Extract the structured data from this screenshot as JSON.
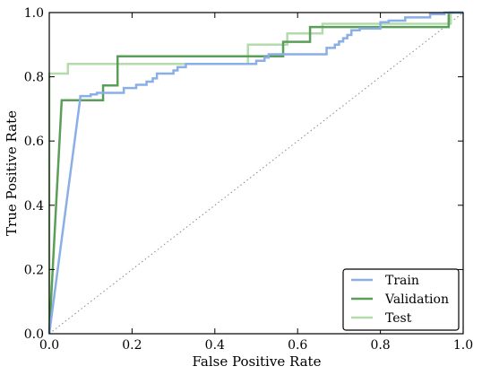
{
  "chart_data": {
    "type": "line",
    "xlabel": "False Positive Rate",
    "ylabel": "True Positive Rate",
    "xlim": [
      0.0,
      1.0
    ],
    "ylim": [
      0.0,
      1.0
    ],
    "xticks": [
      0.0,
      0.2,
      0.4,
      0.6,
      0.8,
      1.0
    ],
    "yticks": [
      0.0,
      0.2,
      0.4,
      0.6,
      0.8,
      1.0
    ],
    "x_tick_labels": [
      "0.0",
      "0.2",
      "0.4",
      "0.6",
      "0.8",
      "1.0"
    ],
    "y_tick_labels": [
      "0.0",
      "0.2",
      "0.4",
      "0.6",
      "0.8",
      "1.0"
    ],
    "grid": false,
    "legend_position": "lower-right",
    "reference_line": {
      "style": "dotted",
      "color": "#888888",
      "x": [
        0,
        1
      ],
      "y": [
        0,
        1
      ]
    },
    "series": [
      {
        "name": "Train",
        "color": "#8aaee6",
        "x": [
          0.0,
          0.075,
          0.075,
          0.1,
          0.1,
          0.115,
          0.115,
          0.18,
          0.18,
          0.21,
          0.21,
          0.235,
          0.235,
          0.25,
          0.25,
          0.26,
          0.26,
          0.3,
          0.3,
          0.31,
          0.31,
          0.33,
          0.33,
          0.5,
          0.5,
          0.52,
          0.52,
          0.53,
          0.53,
          0.67,
          0.67,
          0.69,
          0.69,
          0.7,
          0.7,
          0.71,
          0.71,
          0.72,
          0.72,
          0.73,
          0.73,
          0.75,
          0.75,
          0.8,
          0.8,
          0.82,
          0.82,
          0.86,
          0.86,
          0.92,
          0.92,
          0.955,
          0.955,
          1.0
        ],
        "y": [
          0.0,
          0.735,
          0.74,
          0.74,
          0.745,
          0.745,
          0.75,
          0.75,
          0.765,
          0.765,
          0.775,
          0.775,
          0.785,
          0.785,
          0.795,
          0.795,
          0.81,
          0.81,
          0.82,
          0.82,
          0.83,
          0.83,
          0.84,
          0.84,
          0.85,
          0.85,
          0.86,
          0.86,
          0.87,
          0.87,
          0.89,
          0.89,
          0.9,
          0.9,
          0.91,
          0.91,
          0.92,
          0.92,
          0.93,
          0.93,
          0.945,
          0.945,
          0.95,
          0.95,
          0.97,
          0.97,
          0.975,
          0.975,
          0.985,
          0.985,
          0.995,
          0.995,
          1.0,
          1.0
        ]
      },
      {
        "name": "Validation",
        "color": "#5a9e5a",
        "x": [
          0.0,
          0.03,
          0.13,
          0.13,
          0.165,
          0.165,
          0.565,
          0.565,
          0.63,
          0.63,
          0.775,
          0.775,
          0.965,
          0.965,
          1.0
        ],
        "y": [
          0.0,
          0.727,
          0.727,
          0.773,
          0.773,
          0.864,
          0.864,
          0.909,
          0.909,
          0.955,
          0.955,
          0.955,
          0.955,
          1.0,
          1.0
        ],
        "curve": "step"
      },
      {
        "name": "Test",
        "color": "#b3dbac",
        "x": [
          0.0,
          0.0,
          0.045,
          0.045,
          0.48,
          0.48,
          0.575,
          0.575,
          0.66,
          0.66,
          0.8,
          0.8,
          0.97,
          0.97,
          1.0
        ],
        "y": [
          0.0,
          0.81,
          0.81,
          0.84,
          0.84,
          0.9,
          0.9,
          0.935,
          0.935,
          0.965,
          0.965,
          0.965,
          0.965,
          1.0,
          1.0
        ]
      }
    ]
  }
}
